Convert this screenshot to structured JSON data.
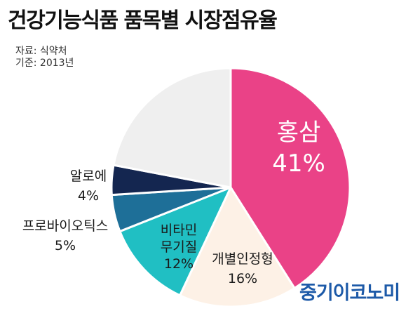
{
  "header": {
    "title": "건강기능식품 품목별 시장점유율",
    "source": "자료: 식약처",
    "base_year": "기준: 2013년"
  },
  "brand": {
    "name": "중기이코노미"
  },
  "colors": {
    "hongsam": "#ea4287",
    "gaebyeol": "#fdf1e6",
    "vitamin": "#20bfc3",
    "probiotics": "#1e6f98",
    "aloe": "#142650",
    "others": "#efefef",
    "brand": "#1d5aa8"
  },
  "chart_data": {
    "type": "pie",
    "title": "건강기능식품 품목별 시장점유율",
    "unit": "%",
    "slices": [
      {
        "lines": [
          "홍삼"
        ],
        "value": 41,
        "label": "41%",
        "color": "#ea4287"
      },
      {
        "lines": [
          "개별인정형"
        ],
        "value": 16,
        "label": "16%",
        "color": "#fdf1e6"
      },
      {
        "lines": [
          "비타민",
          "무기질"
        ],
        "value": 12,
        "label": "12%",
        "color": "#20bfc3"
      },
      {
        "lines": [
          "프로바이오틱스"
        ],
        "value": 5,
        "label": "5%",
        "color": "#1e6f98"
      },
      {
        "lines": [
          "알로에"
        ],
        "value": 4,
        "label": "4%",
        "color": "#142650"
      },
      {
        "lines": [],
        "value": 22,
        "label": "",
        "color": "#efefef"
      }
    ]
  }
}
